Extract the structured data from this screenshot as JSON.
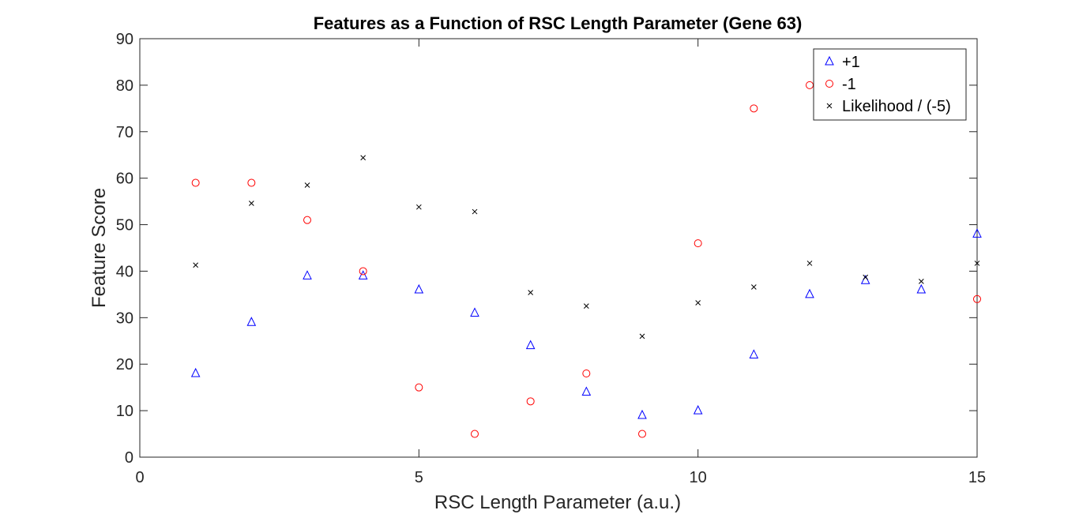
{
  "chart_data": {
    "type": "scatter",
    "title": "Features as a Function of RSC Length Parameter (Gene 63)",
    "xlabel": "RSC Length Parameter (a.u.)",
    "ylabel": "Feature Score",
    "xlim": [
      0,
      15
    ],
    "ylim": [
      0,
      90
    ],
    "xticks": [
      0,
      5,
      10,
      15
    ],
    "yticks": [
      0,
      10,
      20,
      30,
      40,
      50,
      60,
      70,
      80,
      90
    ],
    "grid": false,
    "legend_position": "top-right",
    "series": [
      {
        "name": "+1",
        "marker": "triangle",
        "color": "#0000ff",
        "x": [
          1,
          2,
          3,
          4,
          5,
          6,
          7,
          8,
          9,
          10,
          11,
          12,
          13,
          14,
          15
        ],
        "y": [
          18,
          29,
          39,
          39,
          36,
          31,
          24,
          14,
          9,
          10,
          22,
          35,
          38,
          36,
          48
        ]
      },
      {
        "name": "-1",
        "marker": "circle",
        "color": "#ff0000",
        "x": [
          1,
          2,
          3,
          4,
          5,
          6,
          7,
          8,
          9,
          10,
          11,
          12,
          13,
          14,
          15
        ],
        "y": [
          59,
          59,
          51,
          40,
          15,
          5,
          12,
          18,
          5,
          46,
          75,
          80,
          80,
          80,
          34
        ]
      },
      {
        "name": "Likelihood / (-5)",
        "marker": "x",
        "color": "#000000",
        "x": [
          1,
          2,
          3,
          4,
          5,
          6,
          7,
          8,
          9,
          10,
          11,
          12,
          13,
          14,
          15
        ],
        "y": [
          41.3,
          54.6,
          58.5,
          64.4,
          53.8,
          52.8,
          35.4,
          32.5,
          26,
          33.2,
          36.6,
          41.7,
          38.7,
          37.8,
          41.7
        ]
      }
    ]
  }
}
